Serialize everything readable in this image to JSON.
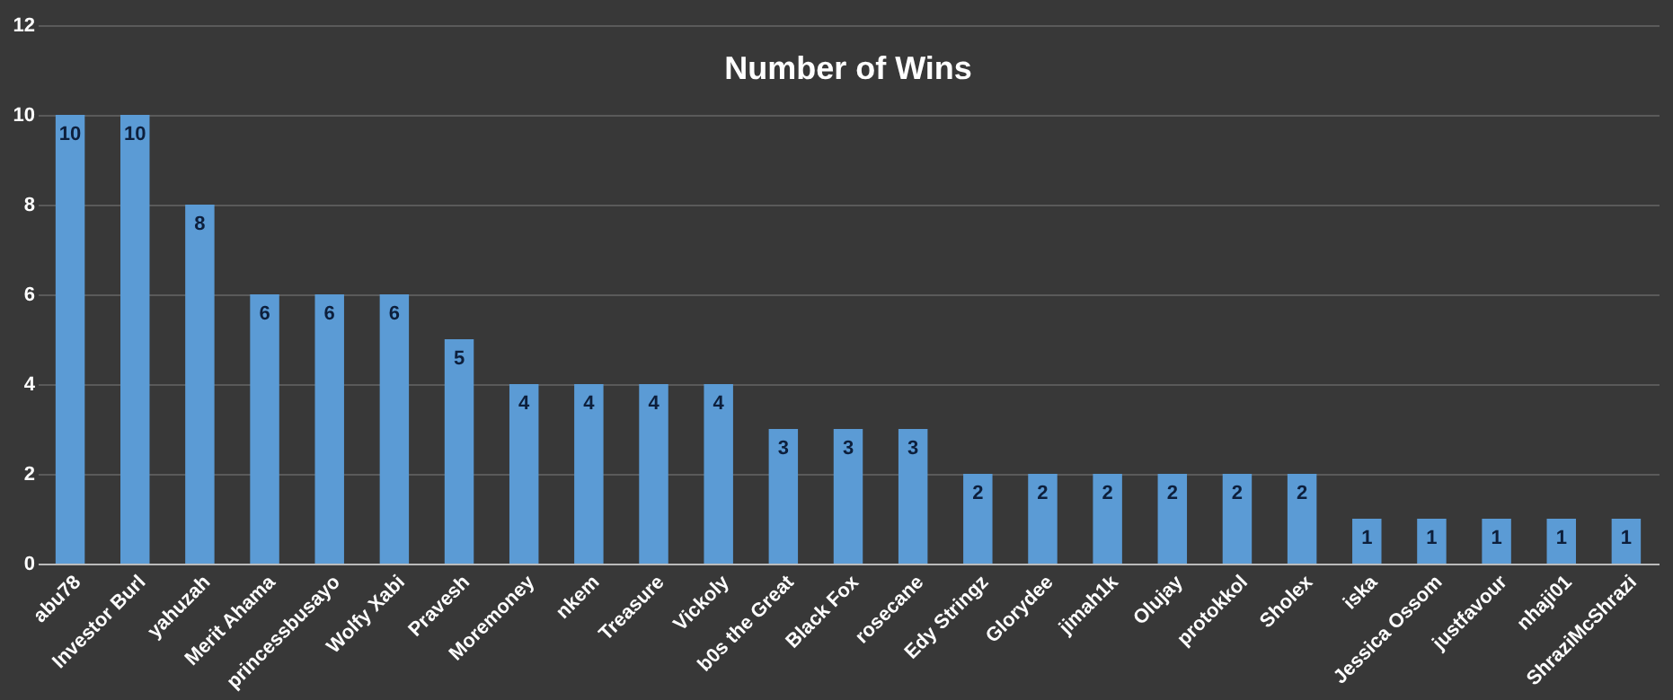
{
  "chart_data": {
    "type": "bar",
    "title": "Number of Wins",
    "categories": [
      "abu78",
      "Investor Burl",
      "yahuzah",
      "Merit Ahama",
      "princessbusayo",
      "Wolfy Xabi",
      "Pravesh",
      "Moremoney",
      "nkem",
      "Treasure",
      "Vickoly",
      "b0s the Great",
      "Black Fox",
      "rosecane",
      "Edy Stringz",
      "Glorydee",
      "jimah1k",
      "Olujay",
      "protokkol",
      "Sholex",
      "iska",
      "Jessica Ossom",
      "justfavour",
      "nhaji01",
      "ShraziMcShrazi"
    ],
    "values": [
      10,
      10,
      8,
      6,
      6,
      6,
      5,
      4,
      4,
      4,
      4,
      3,
      3,
      3,
      2,
      2,
      2,
      2,
      2,
      2,
      1,
      1,
      1,
      1,
      1
    ],
    "color": "#5b9bd5",
    "ylim": [
      0,
      12
    ],
    "yticks": [
      0,
      2,
      4,
      6,
      8,
      10,
      12
    ],
    "grid": "y",
    "data_labels": true
  }
}
